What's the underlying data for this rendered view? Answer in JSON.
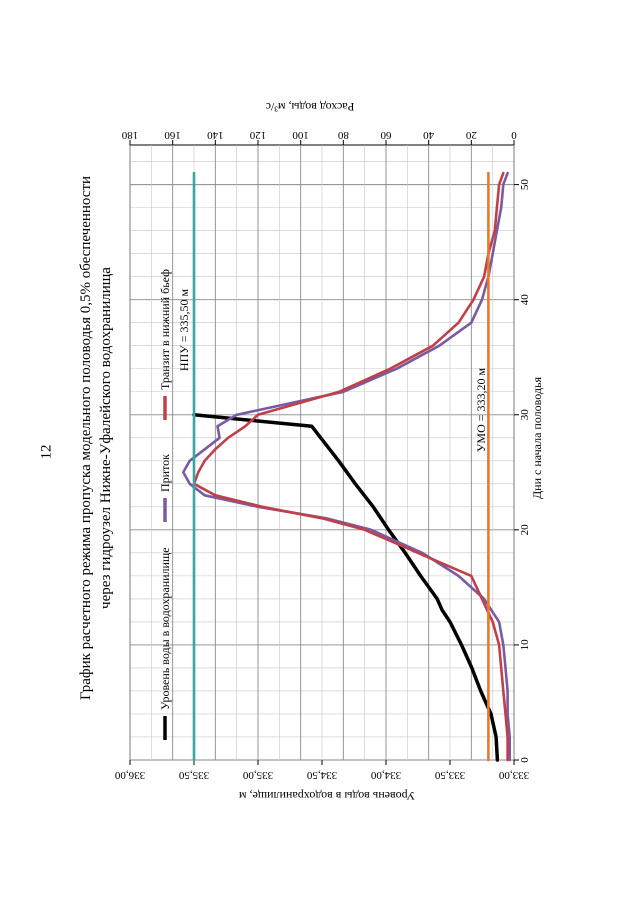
{
  "page": {
    "number": "12"
  },
  "chart_data": {
    "type": "line",
    "title": "График расчетного режима пропуска модельного половодья 0,5% обеспеченности",
    "subtitle": "через гидроузел Нижне-Уфалейского водохранилища",
    "xlabel": "Дни с начала половодья",
    "ylabel_left": "Уровень воды в водохранилище, м",
    "ylabel_right": "Расход воды, м³/с",
    "xlim": [
      0,
      52
    ],
    "ylim_left": [
      333.0,
      336.0
    ],
    "ylim_right": [
      0,
      180
    ],
    "x_ticks": [
      "0",
      "10",
      "20",
      "30",
      "40",
      "50"
    ],
    "y_left_ticks": [
      "333,00",
      "333,50",
      "334,00",
      "334,50",
      "335,00",
      "335,50",
      "336,00"
    ],
    "y_right_ticks": [
      "0",
      "20",
      "40",
      "60",
      "80",
      "100",
      "120",
      "140",
      "160",
      "180"
    ],
    "grid": true,
    "legend_placement": "top",
    "legend": [
      {
        "label": "Уровень воды в водохранилище",
        "color": "#000000"
      },
      {
        "label": "Приток",
        "color": "#7a5ba3"
      },
      {
        "label": "Транзит в нижний бьеф",
        "color": "#c0404a"
      }
    ],
    "annotations": [
      {
        "text": "НПУ = 335,50 м",
        "x": 27.5,
        "y": 335.5,
        "axis": "left"
      },
      {
        "text": "УМО = 333,20 м",
        "x": 30,
        "y": 333.2,
        "axis": "left"
      }
    ],
    "series": [
      {
        "name": "Уровень воды в водохранилище",
        "axis": "left",
        "color": "#000000",
        "x": [
          0,
          2,
          4,
          6,
          8,
          10,
          12,
          13,
          14,
          16,
          18,
          20,
          22,
          24,
          26,
          28,
          29,
          30
        ],
        "y": [
          333.13,
          333.14,
          333.18,
          333.26,
          333.33,
          333.41,
          333.5,
          333.56,
          333.6,
          333.73,
          333.85,
          333.98,
          334.1,
          334.24,
          334.37,
          334.51,
          334.58,
          335.5
        ]
      },
      {
        "name": "Приток",
        "axis": "right",
        "color": "#7a5ba3",
        "x": [
          0,
          2,
          4,
          6,
          8,
          10,
          12,
          14,
          16,
          18,
          20,
          21,
          22,
          23,
          24,
          25,
          26,
          27,
          28,
          29,
          30,
          32,
          34,
          36,
          38,
          40,
          42,
          44,
          46,
          48,
          50,
          51
        ],
        "y": [
          2,
          2,
          3,
          3,
          4,
          5,
          7,
          14,
          26,
          43,
          67,
          88,
          120,
          145,
          152,
          155,
          152,
          145,
          138,
          139,
          130,
          80,
          55,
          35,
          20,
          15,
          12,
          10,
          8,
          6,
          5,
          3
        ]
      },
      {
        "name": "Транзит в нижний бьеф",
        "axis": "right",
        "color": "#c0404a",
        "x": [
          0,
          2,
          4,
          6,
          8,
          10,
          12,
          14,
          16,
          18,
          20,
          21,
          22,
          23,
          24,
          25,
          26,
          27,
          28,
          29,
          30,
          32,
          34,
          36,
          38,
          40,
          42,
          44,
          46,
          48,
          50,
          51
        ],
        "y": [
          3,
          3,
          4,
          5,
          6,
          7,
          10,
          15,
          20,
          45,
          70,
          90,
          118,
          140,
          150,
          148,
          145,
          140,
          134,
          126,
          120,
          82,
          58,
          38,
          26,
          19,
          14,
          12,
          9,
          8,
          7,
          5
        ]
      },
      {
        "name": "НПУ",
        "axis": "left",
        "color": "#3aa6a0",
        "x": [
          0,
          51
        ],
        "y": [
          335.5,
          335.5
        ]
      },
      {
        "name": "УМО",
        "axis": "left",
        "color": "#e77a2c",
        "x": [
          0,
          51
        ],
        "y": [
          333.2,
          333.2
        ]
      }
    ]
  }
}
